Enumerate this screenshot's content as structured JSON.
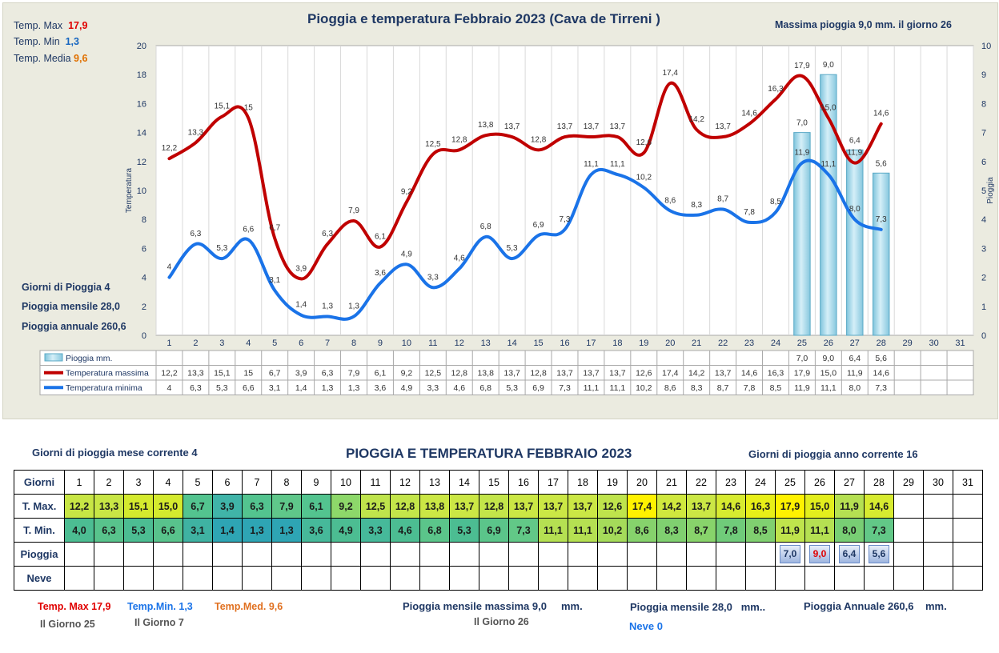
{
  "chart_title": "Pioggia e temperatura Febbraio 2023 (Cava de Tirreni )",
  "summary": {
    "tmax_label": "Temp. Max",
    "tmax_value": "17,9",
    "tmin_label": "Temp. Min",
    "tmin_value": "1,3",
    "tmed_label": "Temp. Media",
    "tmed_value": "9,6",
    "max_rain_text": "Massima pioggia  9,0    mm. il giorno   26",
    "giorni_pioggia": "Giorni di Pioggia  4",
    "pioggia_mensile": "Pioggia mensile  28,0",
    "pioggia_annuale": "Pioggia annuale  260,6"
  },
  "chart_data": {
    "type": "line",
    "title": "Pioggia e temperatura Febbraio 2023 (Cava de Tirreni )",
    "ylabel": "Temperatura",
    "y2label": "Pioggia",
    "ylim": [
      0,
      20
    ],
    "y2lim": [
      0,
      10
    ],
    "yticks": [
      "0",
      "2",
      "4",
      "6",
      "8",
      "10",
      "12",
      "14",
      "16",
      "18",
      "20"
    ],
    "y2ticks": [
      "0",
      "1",
      "2",
      "3",
      "4",
      "5",
      "6",
      "7",
      "8",
      "9",
      "10"
    ],
    "categories": [
      "1",
      "2",
      "3",
      "4",
      "5",
      "6",
      "7",
      "8",
      "9",
      "10",
      "11",
      "12",
      "13",
      "14",
      "15",
      "16",
      "17",
      "18",
      "19",
      "20",
      "21",
      "22",
      "23",
      "24",
      "25",
      "26",
      "27",
      "28",
      "29",
      "30",
      "31"
    ],
    "series": [
      {
        "name": "Pioggia mm.",
        "type": "bar",
        "axis": "right",
        "color": "#9dd3e6",
        "values": [
          null,
          null,
          null,
          null,
          null,
          null,
          null,
          null,
          null,
          null,
          null,
          null,
          null,
          null,
          null,
          null,
          null,
          null,
          null,
          null,
          null,
          null,
          null,
          null,
          7.0,
          9.0,
          6.4,
          5.6,
          null,
          null,
          null
        ],
        "labels": [
          "",
          "",
          "",
          "",
          "",
          "",
          "",
          "",
          "",
          "",
          "",
          "",
          "",
          "",
          "",
          "",
          "",
          "",
          "",
          "",
          "",
          "",
          "",
          "",
          "7,0",
          "9,0",
          "6,4",
          "5,6",
          "",
          "",
          ""
        ]
      },
      {
        "name": "Temperatura massima",
        "type": "line",
        "axis": "left",
        "color": "#c00000",
        "values": [
          12.2,
          13.3,
          15.1,
          15,
          6.7,
          3.9,
          6.3,
          7.9,
          6.1,
          9.2,
          12.5,
          12.8,
          13.8,
          13.7,
          12.8,
          13.7,
          13.7,
          13.7,
          12.6,
          17.4,
          14.2,
          13.7,
          14.6,
          16.3,
          17.9,
          15.0,
          11.9,
          14.6,
          null,
          null,
          null
        ],
        "labels": [
          "12,2",
          "13,3",
          "15,1",
          "15",
          "6,7",
          "3,9",
          "6,3",
          "7,9",
          "6,1",
          "9,2",
          "12,5",
          "12,8",
          "13,8",
          "13,7",
          "12,8",
          "13,7",
          "13,7",
          "13,7",
          "12,6",
          "17,4",
          "14,2",
          "13,7",
          "14,6",
          "16,3",
          "17,9",
          "15,0",
          "11,9",
          "14,6",
          "",
          "",
          ""
        ]
      },
      {
        "name": "Temperatura minima",
        "type": "line",
        "axis": "left",
        "color": "#1a73e8",
        "values": [
          4,
          6.3,
          5.3,
          6.6,
          3.1,
          1.4,
          1.3,
          1.3,
          3.6,
          4.9,
          3.3,
          4.6,
          6.8,
          5.3,
          6.9,
          7.3,
          11.1,
          11.1,
          10.2,
          8.6,
          8.3,
          8.7,
          7.8,
          8.5,
          11.9,
          11.1,
          8.0,
          7.3,
          null,
          null,
          null
        ],
        "labels": [
          "4",
          "6,3",
          "5,3",
          "6,6",
          "3,1",
          "1,4",
          "1,3",
          "1,3",
          "3,6",
          "4,9",
          "3,3",
          "4,6",
          "6,8",
          "5,3",
          "6,9",
          "7,3",
          "11,1",
          "11,1",
          "10,2",
          "8,6",
          "8,3",
          "8,7",
          "7,8",
          "8,5",
          "11,9",
          "11,1",
          "8,0",
          "7,3",
          "",
          "",
          ""
        ]
      }
    ]
  },
  "table": {
    "heading": "PIOGGIA E TEMPERATURA FEBBRAIO 2023",
    "left_note": "Giorni di pioggia mese corrente    4",
    "right_note": "Giorni di pioggia anno corrente  16",
    "row_labels": {
      "giorni": "Giorni",
      "tmax": "T. Max.",
      "tmin": "T. Min.",
      "pioggia": "Pioggia",
      "neve": "Neve"
    },
    "days": [
      "1",
      "2",
      "3",
      "4",
      "5",
      "6",
      "7",
      "8",
      "9",
      "10",
      "11",
      "12",
      "13",
      "14",
      "15",
      "16",
      "17",
      "18",
      "19",
      "20",
      "21",
      "22",
      "23",
      "24",
      "25",
      "26",
      "27",
      "28",
      "29",
      "30",
      "31"
    ],
    "tmax": [
      "12,2",
      "13,3",
      "15,1",
      "15,0",
      "6,7",
      "3,9",
      "6,3",
      "7,9",
      "6,1",
      "9,2",
      "12,5",
      "12,8",
      "13,8",
      "13,7",
      "12,8",
      "13,7",
      "13,7",
      "13,7",
      "12,6",
      "17,4",
      "14,2",
      "13,7",
      "14,6",
      "16,3",
      "17,9",
      "15,0",
      "11,9",
      "14,6",
      "",
      "",
      ""
    ],
    "tmax_colors": [
      "#c8e645",
      "#c8e645",
      "#d4ea2e",
      "#d4ea2e",
      "#53c48f",
      "#40b4a8",
      "#53c48f",
      "#5fc78a",
      "#53c48f",
      "#8dd86a",
      "#bfe44c",
      "#c3e54a",
      "#cbe745",
      "#cbe745",
      "#c3e54a",
      "#cbe745",
      "#cbe745",
      "#cbe745",
      "#bfe44c",
      "#fff200",
      "#d0e83e",
      "#cbe745",
      "#d7eb30",
      "#e8ef18",
      "#fff200",
      "#e3ee1d",
      "#b5e052",
      "#d7eb30",
      "#ffffff",
      "#ffffff",
      "#ffffff"
    ],
    "tmin": [
      "4,0",
      "6,3",
      "5,3",
      "6,6",
      "3,1",
      "1,4",
      "1,3",
      "1,3",
      "3,6",
      "4,9",
      "3,3",
      "4,6",
      "6,8",
      "5,3",
      "6,9",
      "7,3",
      "11,1",
      "11,1",
      "10,2",
      "8,6",
      "8,3",
      "8,7",
      "7,8",
      "8,5",
      "11,9",
      "11,1",
      "8,0",
      "7,3",
      "",
      "",
      ""
    ],
    "tmin_colors": [
      "#4cbd92",
      "#58c38c",
      "#4cbd92",
      "#58c38c",
      "#3fb2a2",
      "#2ea5b4",
      "#2ea5b4",
      "#2ea5b4",
      "#46b99a",
      "#4cbd92",
      "#46b99a",
      "#4cbd92",
      "#5bc58a",
      "#4cbd92",
      "#5bc58a",
      "#62c887",
      "#b5e052",
      "#b5e052",
      "#a5db5a",
      "#86d26c",
      "#80d070",
      "#88d36b",
      "#70cb7a",
      "#80d070",
      "#bfe44c",
      "#b5e052",
      "#78ce74",
      "#62c887",
      "#ffffff",
      "#ffffff",
      "#ffffff"
    ],
    "pioggia": [
      "",
      "",
      "",
      "",
      "",
      "",
      "",
      "",
      "",
      "",
      "",
      "",
      "",
      "",
      "",
      "",
      "",
      "",
      "",
      "",
      "",
      "",
      "",
      "",
      "7,0",
      "9,0",
      "6,4",
      "5,6",
      "",
      "",
      ""
    ]
  },
  "footer": {
    "tmax_label": "Temp. Max",
    "tmax_value": "17,9",
    "tmax_day": "Il Giorno  25",
    "tmin_label": "Temp.Min.",
    "tmin_value": "1,3",
    "tmin_day": "Il Giorno  7",
    "tmed_label": "Temp.Med.",
    "tmed_value": "9,6",
    "pioggia_max": "Pioggia mensile massima  9,0",
    "pioggia_max_unit": "mm.",
    "pioggia_max_day": "Il Giorno 26",
    "pioggia_mensile": "Pioggia mensile  28,0",
    "pioggia_mensile_unit": "mm..",
    "pioggia_annuale": "Pioggia Annuale  260,6",
    "pioggia_annuale_unit": "mm.",
    "neve": "Neve 0"
  }
}
